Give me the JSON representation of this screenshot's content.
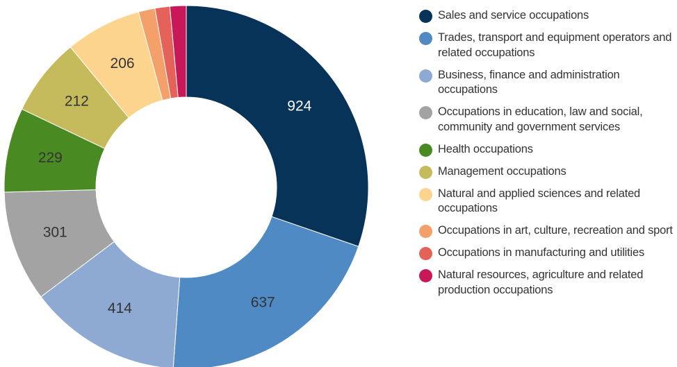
{
  "chart_data": {
    "type": "donut",
    "categories": [
      "Sales and service occupations",
      "Trades, transport and equipment operators and related occupations",
      "Business, finance and administration occupations",
      "Occupations in education, law and social, community and government services",
      "Health occupations",
      "Management occupations",
      "Natural and applied sciences and related occupations",
      "Occupations in art, culture, recreation and sport",
      "Occupations in manufacturing and utilities",
      "Natural resources, agriculture and related production occupations"
    ],
    "values": [
      924,
      637,
      414,
      301,
      229,
      212,
      206,
      45,
      40,
      44
    ],
    "colors": [
      "#083358",
      "#4f8ac4",
      "#8eaad3",
      "#a3a3a3",
      "#4a8a23",
      "#c6bb5c",
      "#fdd48e",
      "#f3a06b",
      "#e4625a",
      "#c8185a"
    ],
    "legend": "right"
  }
}
